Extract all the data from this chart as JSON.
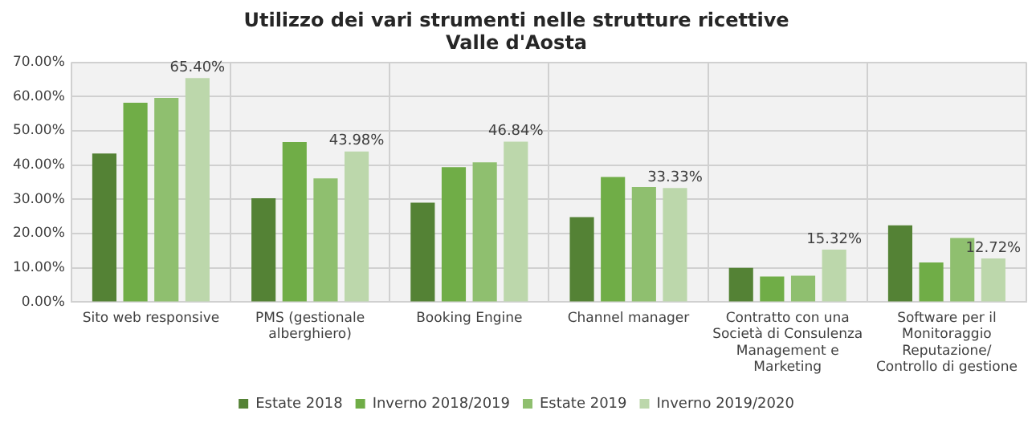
{
  "chart_data": {
    "type": "bar",
    "title": "Utilizzo dei vari strumenti nelle strutture ricettive",
    "subtitle": "Valle d'Aosta",
    "categories": [
      "Sito web responsive",
      "PMS (gestionale alberghiero)",
      "Booking Engine",
      "Channel manager",
      "Contratto con una Società di Consulenza Management e Marketing",
      "Software per il Monitoraggio Reputazione/ Controllo di gestione"
    ],
    "series": [
      {
        "name": "Estate 2018",
        "color": "#548235",
        "values": [
          43.4,
          30.3,
          29.0,
          24.8,
          10.0,
          22.4
        ]
      },
      {
        "name": "Inverno 2018/2019",
        "color": "#70ad47",
        "values": [
          58.2,
          46.7,
          39.4,
          36.5,
          7.5,
          11.6
        ]
      },
      {
        "name": "Estate 2019",
        "color": "#8fbf6f",
        "values": [
          59.6,
          36.1,
          40.8,
          33.6,
          7.7,
          18.7
        ]
      },
      {
        "name": "Inverno 2019/2020",
        "color": "#bcd7ab",
        "values": [
          65.4,
          43.98,
          46.84,
          33.33,
          15.32,
          12.72
        ],
        "value_labels": [
          "65.40%",
          "43.98%",
          "46.84%",
          "33.33%",
          "15.32%",
          "12.72%"
        ]
      }
    ],
    "ylim": [
      0,
      70
    ],
    "yticks": [
      {
        "value": 0,
        "label": "0.00%"
      },
      {
        "value": 10,
        "label": "10.00%"
      },
      {
        "value": 20,
        "label": "20.00%"
      },
      {
        "value": 30,
        "label": "30.00%"
      },
      {
        "value": 40,
        "label": "40.00%"
      },
      {
        "value": 50,
        "label": "50.00%"
      },
      {
        "value": 60,
        "label": "60.00%"
      },
      {
        "value": 70,
        "label": "70.00%"
      }
    ],
    "grid": true,
    "legend": "bottom"
  }
}
